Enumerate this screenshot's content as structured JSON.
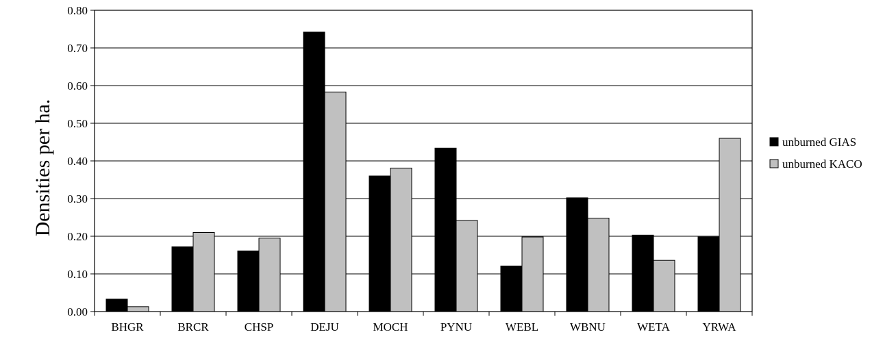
{
  "chart_data": {
    "type": "bar",
    "title": "",
    "xlabel": "",
    "ylabel": "Densities per ha.",
    "ylim": [
      0,
      0.8
    ],
    "yticks": [
      "0.00",
      "0.10",
      "0.20",
      "0.30",
      "0.40",
      "0.50",
      "0.60",
      "0.70",
      "0.80"
    ],
    "grid": true,
    "legend_position": "right",
    "categories": [
      "BHGR",
      "BRCR",
      "CHSP",
      "DEJU",
      "MOCH",
      "PYNU",
      "WEBL",
      "WBNU",
      "WETA",
      "YRWA"
    ],
    "series": [
      {
        "name": "unburned GIAS",
        "color": "#000000",
        "values": [
          0.033,
          0.172,
          0.161,
          0.742,
          0.36,
          0.434,
          0.121,
          0.302,
          0.203,
          0.198
        ]
      },
      {
        "name": "unburned KACO",
        "color": "#c0c0c0",
        "values": [
          0.013,
          0.21,
          0.195,
          0.583,
          0.381,
          0.242,
          0.198,
          0.248,
          0.136,
          0.46
        ]
      }
    ]
  }
}
